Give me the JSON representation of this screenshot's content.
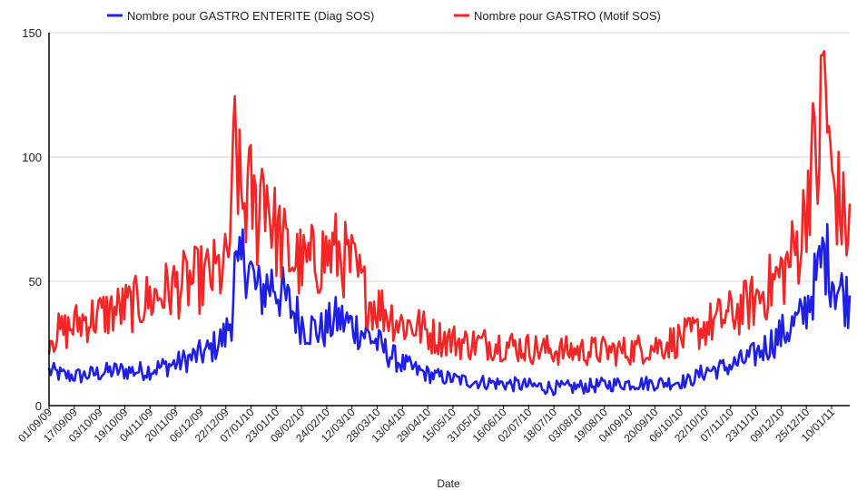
{
  "chart_data": {
    "type": "line",
    "xlabel": "Date",
    "ylabel": "",
    "ylim": [
      0,
      150
    ],
    "yticks": [
      0,
      50,
      100,
      150
    ],
    "grid": "horizontal",
    "legend_placement": "top",
    "x_tick_labels": [
      "01/09/09",
      "17/09/09",
      "03/10/09",
      "19/10/09",
      "04/11/09",
      "20/11/09",
      "06/12/09",
      "22/12/09",
      "07/01/10",
      "23/01/10",
      "08/02/10",
      "24/02/10",
      "12/03/10",
      "28/03/10",
      "13/04/10",
      "29/04/10",
      "15/05/10",
      "31/05/10",
      "16/06/10",
      "02/07/10",
      "18/07/10",
      "03/08/10",
      "19/08/10",
      "04/09/10",
      "20/09/10",
      "06/10/10",
      "22/10/10",
      "07/11/10",
      "23/11/10",
      "09/12/10",
      "25/12/10",
      "10/01/11"
    ],
    "series": [
      {
        "name": "Nombre pour GASTRO ENTERITE (Diag SOS)",
        "color": "#1f1fe6",
        "anchors": [
          [
            0,
            14
          ],
          [
            10,
            12
          ],
          [
            20,
            12
          ],
          [
            40,
            14
          ],
          [
            60,
            14
          ],
          [
            80,
            17
          ],
          [
            100,
            22
          ],
          [
            110,
            28
          ],
          [
            114,
            36
          ],
          [
            116,
            55
          ],
          [
            118,
            50
          ],
          [
            122,
            62
          ],
          [
            130,
            45
          ],
          [
            140,
            50
          ],
          [
            150,
            40
          ],
          [
            160,
            32
          ],
          [
            170,
            30
          ],
          [
            180,
            35
          ],
          [
            190,
            32
          ],
          [
            200,
            28
          ],
          [
            210,
            22
          ],
          [
            220,
            17
          ],
          [
            230,
            14
          ],
          [
            240,
            12
          ],
          [
            260,
            10
          ],
          [
            280,
            9
          ],
          [
            300,
            8
          ],
          [
            320,
            7
          ],
          [
            340,
            8
          ],
          [
            360,
            9
          ],
          [
            380,
            9
          ],
          [
            400,
            10
          ],
          [
            410,
            14
          ],
          [
            420,
            15
          ],
          [
            430,
            17
          ],
          [
            440,
            20
          ],
          [
            450,
            25
          ],
          [
            460,
            30
          ],
          [
            470,
            35
          ],
          [
            480,
            52
          ],
          [
            484,
            62
          ],
          [
            488,
            55
          ],
          [
            492,
            48
          ],
          [
            496,
            45
          ],
          [
            500,
            42
          ]
        ]
      },
      {
        "name": "Nombre pour GASTRO (Motif SOS)",
        "color": "#f22626",
        "anchors": [
          [
            0,
            28
          ],
          [
            10,
            30
          ],
          [
            20,
            34
          ],
          [
            40,
            38
          ],
          [
            60,
            42
          ],
          [
            80,
            48
          ],
          [
            100,
            52
          ],
          [
            110,
            55
          ],
          [
            114,
            72
          ],
          [
            116,
            110
          ],
          [
            118,
            95
          ],
          [
            120,
            80
          ],
          [
            126,
            85
          ],
          [
            130,
            75
          ],
          [
            134,
            95
          ],
          [
            140,
            72
          ],
          [
            150,
            60
          ],
          [
            160,
            56
          ],
          [
            170,
            60
          ],
          [
            180,
            62
          ],
          [
            190,
            55
          ],
          [
            200,
            42
          ],
          [
            210,
            38
          ],
          [
            220,
            33
          ],
          [
            230,
            32
          ],
          [
            240,
            28
          ],
          [
            260,
            25
          ],
          [
            280,
            25
          ],
          [
            300,
            23
          ],
          [
            320,
            22
          ],
          [
            340,
            22
          ],
          [
            360,
            22
          ],
          [
            380,
            24
          ],
          [
            400,
            28
          ],
          [
            410,
            32
          ],
          [
            420,
            35
          ],
          [
            430,
            38
          ],
          [
            440,
            42
          ],
          [
            450,
            48
          ],
          [
            460,
            55
          ],
          [
            470,
            68
          ],
          [
            476,
            100
          ],
          [
            480,
            95
          ],
          [
            484,
            140
          ],
          [
            488,
            92
          ],
          [
            492,
            85
          ],
          [
            496,
            75
          ],
          [
            500,
            70
          ]
        ]
      }
    ]
  }
}
